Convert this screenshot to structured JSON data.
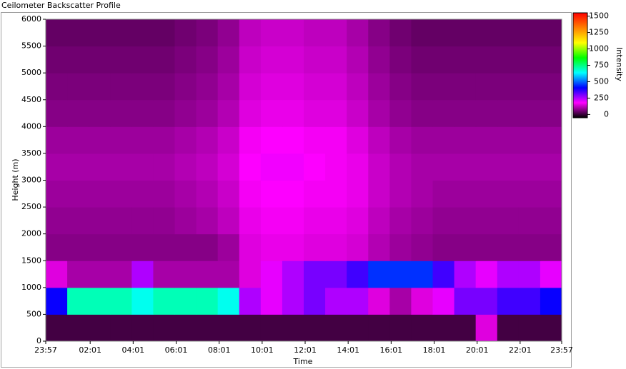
{
  "chart_data": {
    "type": "heatmap",
    "title": "Ceilometer Backscatter Profile",
    "x_label": "Time",
    "y_label": "Height (m)",
    "colorbar_label": "Intensity",
    "xlim": [
      0,
      24
    ],
    "ylim": [
      0,
      6000
    ],
    "xticks": [
      {
        "value": 0,
        "label": "23:57"
      },
      {
        "value": 2.067,
        "label": "02:01"
      },
      {
        "value": 4.067,
        "label": "04:01"
      },
      {
        "value": 6.067,
        "label": "06:01"
      },
      {
        "value": 8.067,
        "label": "08:01"
      },
      {
        "value": 10.067,
        "label": "10:01"
      },
      {
        "value": 12.067,
        "label": "12:01"
      },
      {
        "value": 14.067,
        "label": "14:01"
      },
      {
        "value": 16.067,
        "label": "16:01"
      },
      {
        "value": 18.067,
        "label": "18:01"
      },
      {
        "value": 20.067,
        "label": "20:01"
      },
      {
        "value": 22.067,
        "label": "22:01"
      },
      {
        "value": 24,
        "label": "23:57"
      }
    ],
    "yticks": [
      0,
      500,
      1000,
      1500,
      2000,
      2500,
      3000,
      3500,
      4000,
      4500,
      5000,
      5500,
      6000
    ],
    "clim": [
      -50,
      1550
    ],
    "cticks": [
      0,
      250,
      500,
      750,
      1000,
      1250,
      1500
    ],
    "colorscale": [
      "#000000",
      "#ff00ff",
      "#0000ff",
      "#00ffff",
      "#00ff00",
      "#ffff00",
      "#ff8000",
      "#ff0000"
    ],
    "x": [
      0.5,
      1.5,
      2.5,
      3.5,
      4.5,
      5.5,
      6.5,
      7.5,
      8.5,
      9.5,
      10.5,
      11.5,
      12.5,
      13.5,
      14.5,
      15.5,
      16.5,
      17.5,
      18.5,
      19.5,
      20.5,
      21.5,
      22.5,
      23.5
    ],
    "y": [
      250,
      750,
      1250,
      1750,
      2250,
      2750,
      3250,
      3750,
      4250,
      4750,
      5250,
      5750
    ],
    "z": [
      [
        10,
        10,
        10,
        10,
        10,
        10,
        10,
        10,
        10,
        10,
        10,
        10,
        10,
        10,
        10,
        10,
        10,
        10,
        10,
        10,
        150,
        10,
        10,
        10
      ],
      [
        400,
        700,
        700,
        700,
        650,
        700,
        700,
        700,
        650,
        250,
        200,
        250,
        300,
        250,
        250,
        150,
        100,
        150,
        200,
        300,
        300,
        350,
        350,
        400
      ],
      [
        150,
        100,
        100,
        100,
        250,
        100,
        100,
        100,
        100,
        150,
        200,
        250,
        300,
        300,
        350,
        450,
        450,
        450,
        350,
        250,
        200,
        250,
        250,
        200
      ],
      [
        70,
        70,
        70,
        70,
        70,
        70,
        70,
        70,
        90,
        150,
        160,
        160,
        150,
        150,
        140,
        110,
        90,
        80,
        70,
        70,
        70,
        70,
        70,
        70
      ],
      [
        80,
        80,
        80,
        80,
        80,
        80,
        90,
        100,
        120,
        160,
        170,
        170,
        160,
        160,
        150,
        120,
        100,
        90,
        80,
        80,
        80,
        80,
        80,
        80
      ],
      [
        90,
        90,
        90,
        90,
        90,
        90,
        100,
        110,
        130,
        170,
        180,
        180,
        170,
        170,
        160,
        130,
        110,
        100,
        90,
        90,
        90,
        90,
        90,
        90
      ],
      [
        100,
        100,
        100,
        100,
        100,
        100,
        110,
        120,
        140,
        180,
        190,
        190,
        180,
        170,
        160,
        130,
        110,
        100,
        100,
        100,
        100,
        100,
        100,
        100
      ],
      [
        90,
        90,
        90,
        90,
        90,
        90,
        100,
        110,
        130,
        170,
        180,
        180,
        170,
        170,
        150,
        120,
        100,
        90,
        90,
        90,
        90,
        90,
        90,
        90
      ],
      [
        70,
        70,
        70,
        70,
        70,
        70,
        80,
        90,
        110,
        150,
        160,
        160,
        150,
        150,
        130,
        100,
        80,
        70,
        70,
        70,
        70,
        70,
        70,
        70
      ],
      [
        60,
        60,
        60,
        60,
        60,
        60,
        70,
        80,
        100,
        140,
        150,
        150,
        140,
        140,
        120,
        90,
        70,
        60,
        60,
        60,
        60,
        60,
        60,
        60
      ],
      [
        50,
        50,
        50,
        50,
        50,
        50,
        60,
        70,
        90,
        130,
        140,
        140,
        130,
        130,
        110,
        80,
        60,
        50,
        50,
        50,
        50,
        50,
        50,
        50
      ],
      [
        40,
        40,
        40,
        40,
        40,
        40,
        50,
        60,
        80,
        120,
        130,
        130,
        120,
        120,
        100,
        70,
        50,
        40,
        40,
        40,
        40,
        40,
        40,
        40
      ]
    ]
  }
}
